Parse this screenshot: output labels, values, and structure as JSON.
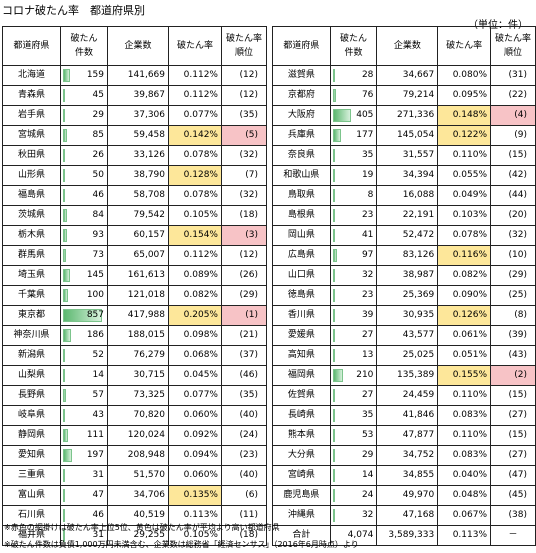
{
  "title": "コロナ破たん率　都道府県別",
  "unit": "（単位：件）",
  "headers": {
    "pref": "都道府県",
    "count_line1": "破たん",
    "count_line2": "件数",
    "companies": "企業数",
    "rate": "破たん率",
    "rank_line1": "破たん率",
    "rank_line2": "順位"
  },
  "max_count": 857,
  "left_rows": [
    {
      "pref": "北海道",
      "count": 159,
      "companies": "141,669",
      "rate": "0.112%",
      "rank": "(12)",
      "hl": ""
    },
    {
      "pref": "青森県",
      "count": 45,
      "companies": "39,867",
      "rate": "0.112%",
      "rank": "(12)",
      "hl": ""
    },
    {
      "pref": "岩手県",
      "count": 29,
      "companies": "37,306",
      "rate": "0.077%",
      "rank": "(35)",
      "hl": ""
    },
    {
      "pref": "宮城県",
      "count": 85,
      "companies": "59,458",
      "rate": "0.142%",
      "rank": "(5)",
      "hl": "red"
    },
    {
      "pref": "秋田県",
      "count": 26,
      "companies": "33,126",
      "rate": "0.078%",
      "rank": "(32)",
      "hl": ""
    },
    {
      "pref": "山形県",
      "count": 50,
      "companies": "38,790",
      "rate": "0.128%",
      "rank": "(7)",
      "hl": "yellow"
    },
    {
      "pref": "福島県",
      "count": 46,
      "companies": "58,708",
      "rate": "0.078%",
      "rank": "(32)",
      "hl": ""
    },
    {
      "pref": "茨城県",
      "count": 84,
      "companies": "79,542",
      "rate": "0.105%",
      "rank": "(18)",
      "hl": ""
    },
    {
      "pref": "栃木県",
      "count": 93,
      "companies": "60,157",
      "rate": "0.154%",
      "rank": "(3)",
      "hl": "red"
    },
    {
      "pref": "群馬県",
      "count": 73,
      "companies": "65,007",
      "rate": "0.112%",
      "rank": "(12)",
      "hl": ""
    },
    {
      "pref": "埼玉県",
      "count": 145,
      "companies": "161,613",
      "rate": "0.089%",
      "rank": "(26)",
      "hl": ""
    },
    {
      "pref": "千葉県",
      "count": 100,
      "companies": "121,018",
      "rate": "0.082%",
      "rank": "(29)",
      "hl": ""
    },
    {
      "pref": "東京都",
      "count": 857,
      "companies": "417,988",
      "rate": "0.205%",
      "rank": "(1)",
      "hl": "red"
    },
    {
      "pref": "神奈川県",
      "count": 186,
      "companies": "188,015",
      "rate": "0.098%",
      "rank": "(21)",
      "hl": ""
    },
    {
      "pref": "新潟県",
      "count": 52,
      "companies": "76,279",
      "rate": "0.068%",
      "rank": "(37)",
      "hl": ""
    },
    {
      "pref": "山梨県",
      "count": 14,
      "companies": "30,715",
      "rate": "0.045%",
      "rank": "(46)",
      "hl": ""
    },
    {
      "pref": "長野県",
      "count": 57,
      "companies": "73,325",
      "rate": "0.077%",
      "rank": "(35)",
      "hl": ""
    },
    {
      "pref": "岐阜県",
      "count": 43,
      "companies": "70,820",
      "rate": "0.060%",
      "rank": "(40)",
      "hl": ""
    },
    {
      "pref": "静岡県",
      "count": 111,
      "companies": "120,024",
      "rate": "0.092%",
      "rank": "(24)",
      "hl": ""
    },
    {
      "pref": "愛知県",
      "count": 197,
      "companies": "208,948",
      "rate": "0.094%",
      "rank": "(23)",
      "hl": ""
    },
    {
      "pref": "三重県",
      "count": 31,
      "companies": "51,570",
      "rate": "0.060%",
      "rank": "(40)",
      "hl": ""
    },
    {
      "pref": "富山県",
      "count": 47,
      "companies": "34,706",
      "rate": "0.135%",
      "rank": "(6)",
      "hl": "yellow"
    },
    {
      "pref": "石川県",
      "count": 46,
      "companies": "40,519",
      "rate": "0.113%",
      "rank": "(11)",
      "hl": ""
    },
    {
      "pref": "福井県",
      "count": 31,
      "companies": "29,255",
      "rate": "0.105%",
      "rank": "(18)",
      "hl": ""
    }
  ],
  "right_rows": [
    {
      "pref": "滋賀県",
      "count": 28,
      "companies": "34,667",
      "rate": "0.080%",
      "rank": "(31)",
      "hl": ""
    },
    {
      "pref": "京都府",
      "count": 76,
      "companies": "79,214",
      "rate": "0.095%",
      "rank": "(22)",
      "hl": ""
    },
    {
      "pref": "大阪府",
      "count": 405,
      "companies": "271,336",
      "rate": "0.148%",
      "rank": "(4)",
      "hl": "red"
    },
    {
      "pref": "兵庫県",
      "count": 177,
      "companies": "145,054",
      "rate": "0.122%",
      "rank": "(9)",
      "hl": "yellow"
    },
    {
      "pref": "奈良県",
      "count": 35,
      "companies": "31,557",
      "rate": "0.110%",
      "rank": "(15)",
      "hl": ""
    },
    {
      "pref": "和歌山県",
      "count": 19,
      "companies": "34,394",
      "rate": "0.055%",
      "rank": "(42)",
      "hl": ""
    },
    {
      "pref": "鳥取県",
      "count": 8,
      "companies": "16,088",
      "rate": "0.049%",
      "rank": "(44)",
      "hl": ""
    },
    {
      "pref": "島根県",
      "count": 23,
      "companies": "22,191",
      "rate": "0.103%",
      "rank": "(20)",
      "hl": ""
    },
    {
      "pref": "岡山県",
      "count": 41,
      "companies": "52,472",
      "rate": "0.078%",
      "rank": "(32)",
      "hl": ""
    },
    {
      "pref": "広島県",
      "count": 97,
      "companies": "83,126",
      "rate": "0.116%",
      "rank": "(10)",
      "hl": "yellow"
    },
    {
      "pref": "山口県",
      "count": 32,
      "companies": "38,987",
      "rate": "0.082%",
      "rank": "(29)",
      "hl": ""
    },
    {
      "pref": "徳島県",
      "count": 23,
      "companies": "25,369",
      "rate": "0.090%",
      "rank": "(25)",
      "hl": ""
    },
    {
      "pref": "香川県",
      "count": 39,
      "companies": "30,935",
      "rate": "0.126%",
      "rank": "(8)",
      "hl": "yellow"
    },
    {
      "pref": "愛媛県",
      "count": 27,
      "companies": "43,577",
      "rate": "0.061%",
      "rank": "(39)",
      "hl": ""
    },
    {
      "pref": "高知県",
      "count": 13,
      "companies": "25,025",
      "rate": "0.051%",
      "rank": "(43)",
      "hl": ""
    },
    {
      "pref": "福岡県",
      "count": 210,
      "companies": "135,389",
      "rate": "0.155%",
      "rank": "(2)",
      "hl": "red"
    },
    {
      "pref": "佐賀県",
      "count": 27,
      "companies": "24,459",
      "rate": "0.110%",
      "rank": "(15)",
      "hl": ""
    },
    {
      "pref": "長崎県",
      "count": 35,
      "companies": "41,846",
      "rate": "0.083%",
      "rank": "(27)",
      "hl": ""
    },
    {
      "pref": "熊本県",
      "count": 53,
      "companies": "47,877",
      "rate": "0.110%",
      "rank": "(15)",
      "hl": ""
    },
    {
      "pref": "大分県",
      "count": 29,
      "companies": "34,752",
      "rate": "0.083%",
      "rank": "(27)",
      "hl": ""
    },
    {
      "pref": "宮崎県",
      "count": 14,
      "companies": "34,855",
      "rate": "0.040%",
      "rank": "(47)",
      "hl": ""
    },
    {
      "pref": "鹿児島県",
      "count": 24,
      "companies": "49,970",
      "rate": "0.048%",
      "rank": "(45)",
      "hl": ""
    },
    {
      "pref": "沖縄県",
      "count": 32,
      "companies": "47,168",
      "rate": "0.067%",
      "rank": "(38)",
      "hl": ""
    }
  ],
  "total": {
    "label": "合計",
    "count": "4,074",
    "companies": "3,589,333",
    "rate": "0.113%",
    "rank": "－"
  },
  "notes": [
    "※赤色の網掛けは破たん率上位5位、黄色は破たん率が平均より高い都道府県",
    "※破たん件数は負債1,000万円未満含む、企業数は総務省「経済センサス」（2016年6月時点）より"
  ],
  "colors": {
    "highlight_yellow": "#fde79a",
    "highlight_red": "#f7c3c6",
    "bar_green": "#5cb870"
  }
}
